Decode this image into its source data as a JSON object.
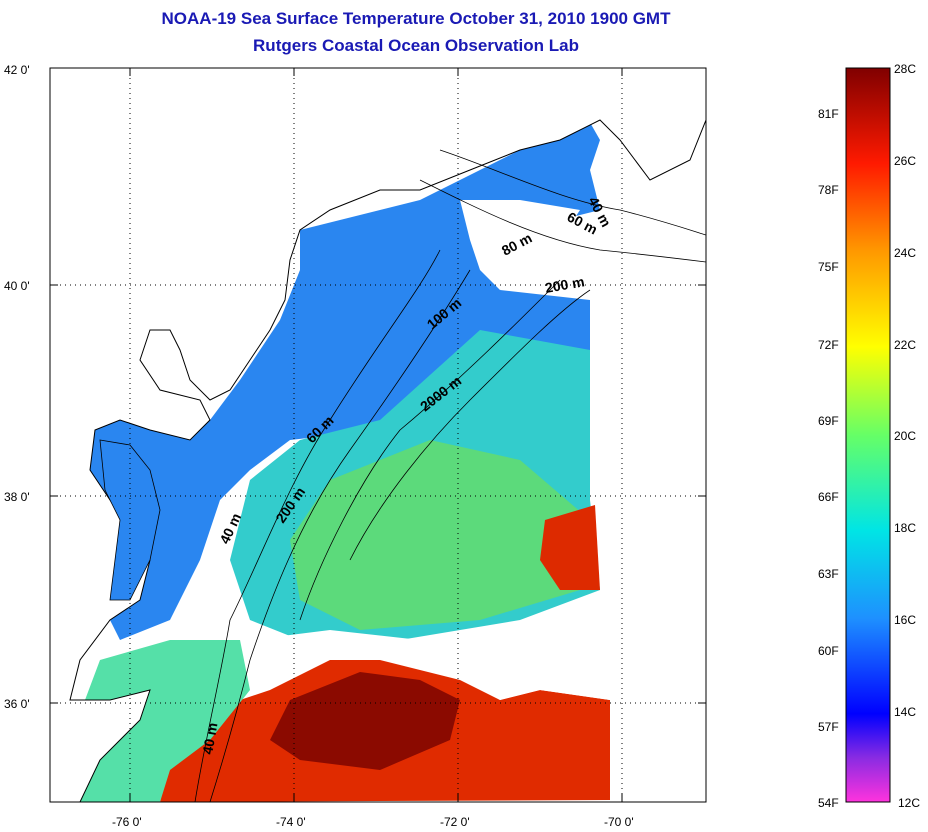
{
  "title": "NOAA-19 Sea Surface Temperature October 31, 2010 1900 GMT",
  "subtitle": "Rutgers Coastal Ocean Observation Lab",
  "map": {
    "lon_range": [
      -77,
      -69
    ],
    "lat_range": [
      35,
      42
    ],
    "lon_ticks": [
      "-76 0'",
      "-74 0'",
      "-72 0'",
      "-70 0'"
    ],
    "lat_ticks": [
      "42 0'",
      "40 0'",
      "38 0'",
      "36 0'"
    ],
    "gridlines": "dotted",
    "contour_labels": [
      {
        "text": "40 m"
      },
      {
        "text": "60 m"
      },
      {
        "text": "80 m"
      },
      {
        "text": "200 m"
      },
      {
        "text": "100 m"
      },
      {
        "text": "2000 m"
      },
      {
        "text": "60 m"
      },
      {
        "text": "200 m"
      },
      {
        "text": "40 m"
      },
      {
        "text": "40 m"
      }
    ]
  },
  "colorbar": {
    "celsius_labels": [
      "28C",
      "26C",
      "24C",
      "22C",
      "20C",
      "18C",
      "16C",
      "14C",
      "12C"
    ],
    "fahrenheit_labels": [
      "81F",
      "78F",
      "75F",
      "72F",
      "69F",
      "66F",
      "63F",
      "60F",
      "57F",
      "54F"
    ],
    "range_c": [
      12,
      28
    ],
    "colors": [
      "#ff33dd",
      "#8a2be2",
      "#0000ff",
      "#1e90ff",
      "#00e5e5",
      "#66ff66",
      "#ffff00",
      "#ff9900",
      "#ff1a00",
      "#800000"
    ]
  }
}
